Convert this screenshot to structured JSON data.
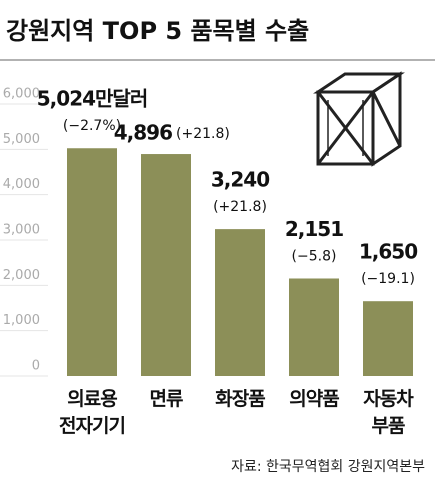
{
  "chart_data": {
    "type": "bar",
    "title": "강원지역 TOP 5 품목별 수출",
    "categories": [
      "의료용\n전자기기",
      "면류",
      "화장품",
      "의약품",
      "자동차\n부품"
    ],
    "values": [
      5024,
      4896,
      3240,
      2151,
      1650
    ],
    "value_labels": [
      "5,024만달러",
      "4,896",
      "3,240",
      "2,151",
      "1,650"
    ],
    "change_labels": [
      "(−2.7%)",
      "(+21.8)",
      "(+21.8)",
      "(−5.8)",
      "(−19.1)"
    ],
    "color": "#8c8f58",
    "ylim": [
      0,
      6000
    ],
    "yticks": [
      0,
      {
        "value": 1000,
        "label": "1,000"
      },
      {
        "value": 2000,
        "label": "2,000"
      },
      {
        "value": 3000,
        "label": "3,000"
      },
      {
        "value": 4000,
        "label": "4,000"
      },
      {
        "value": 5000,
        "label": "5,000"
      },
      {
        "value": 6000,
        "label": "6,000"
      }
    ],
    "source": "자료: 한국무역협회 강원지역본부"
  }
}
